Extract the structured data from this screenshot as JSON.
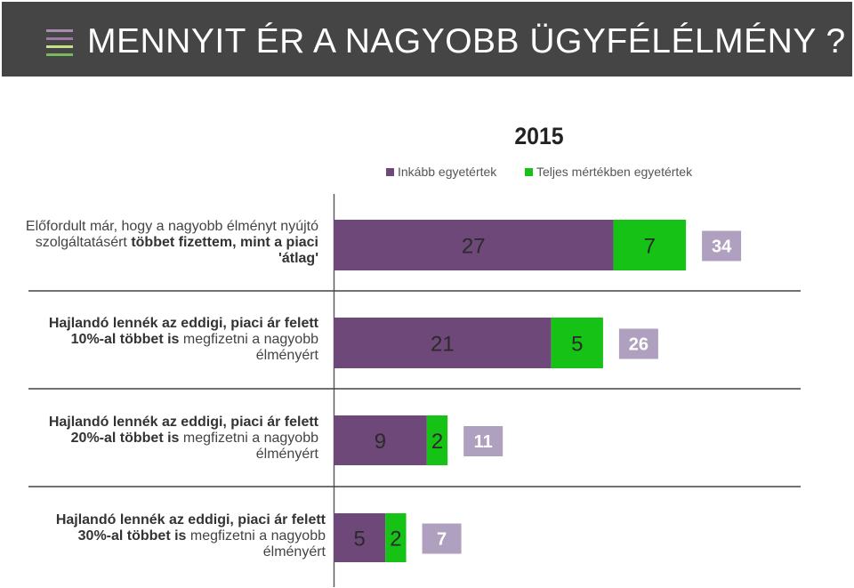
{
  "header": {
    "title": "MENNYIT ÉR A NAGYOBB ÜGYFÉLÉLMÉNY ?",
    "icon": "menu-icon",
    "colors": {
      "background": "#454545",
      "icon_lines": [
        "#a88cb0",
        "#9b7aa3",
        "#c6e08a",
        "#7ab85e"
      ]
    }
  },
  "chart_data": {
    "type": "bar",
    "orientation": "horizontal",
    "stacked": true,
    "title": "2015",
    "legend_placement": "top-right",
    "grid": false,
    "categories": [
      {
        "id": "row1",
        "parts": [
          {
            "text": "Előfordult már, hogy a nagyobb élményt nyújtó szolgáltatásért ",
            "bold": false
          },
          {
            "text": "többet fizettem, mint a piaci 'átlag'",
            "bold": true
          }
        ]
      },
      {
        "id": "row2",
        "parts": [
          {
            "text": "Hajlandó lennék az eddigi, piaci ár felett 10%-al többet is",
            "bold": true
          },
          {
            "text": " megfizetni a nagyobb élményért",
            "bold": false
          }
        ]
      },
      {
        "id": "row3",
        "parts": [
          {
            "text": "Hajlandó lennék az eddigi, piaci ár felett 20%-al többet is",
            "bold": true
          },
          {
            "text": " megfizetni a nagyobb élményért",
            "bold": false
          }
        ]
      },
      {
        "id": "row4",
        "parts": [
          {
            "text": "Hajlandó lennék az eddigi, piaci ár felett 30%-al többet is",
            "bold": true
          },
          {
            "text": " megfizetni a nagyobb élményért",
            "bold": false
          }
        ]
      }
    ],
    "series": [
      {
        "name": "Inkább egyetértek",
        "color": "#6e4878",
        "values": [
          27,
          21,
          9,
          5
        ]
      },
      {
        "name": "Teljes mértékben egyetértek",
        "color": "#17c217",
        "values": [
          7,
          5,
          2,
          2
        ]
      }
    ],
    "totals": {
      "color": "#b0a0c0",
      "values": [
        34,
        26,
        11,
        7
      ]
    }
  }
}
